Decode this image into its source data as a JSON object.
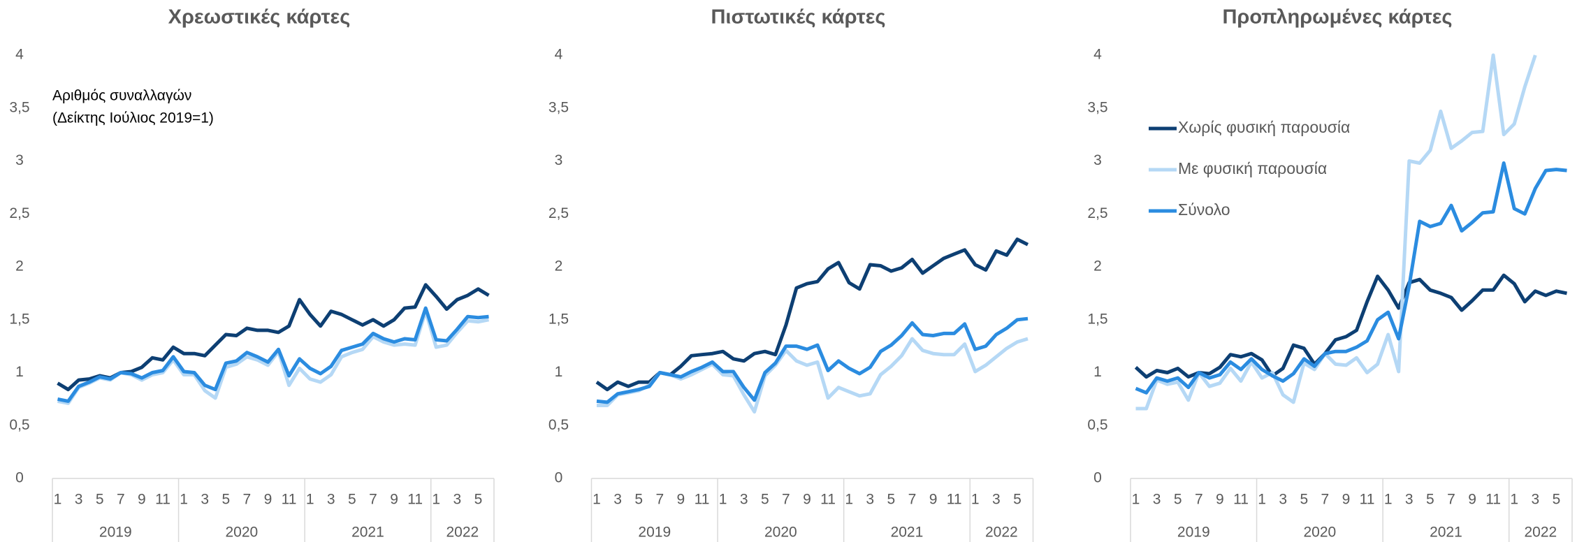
{
  "chart_data": [
    {
      "type": "line",
      "title": "Χρεωστικές κάρτες",
      "annotation": [
        "Αριθμός συναλλαγών",
        "(Δείκτης Ιούλιος 2019=1)"
      ],
      "categories": [
        "1",
        null,
        "3",
        null,
        "5",
        null,
        "7",
        null,
        "9",
        null,
        "11",
        null,
        "1",
        null,
        "3",
        null,
        "5",
        null,
        "7",
        null,
        "9",
        null,
        "11",
        null,
        "1",
        null,
        "3",
        null,
        "5",
        null,
        "7",
        null,
        "9",
        null,
        "11",
        null,
        "1",
        null,
        "3",
        null,
        "5",
        null
      ],
      "x_groups": [
        "2019",
        "2020",
        "2021",
        "2022"
      ],
      "ylim": [
        0,
        4
      ],
      "yticks": [
        0,
        {
          "value": 0.5,
          "label": "0,5"
        },
        1,
        {
          "value": 1.5,
          "label": "1,5"
        },
        2,
        {
          "value": 2.5,
          "label": "2,5"
        },
        3,
        {
          "value": 3.5,
          "label": "3,5"
        },
        4
      ],
      "series": [
        {
          "color": "#0d3f73",
          "values": [
            0.9,
            0.84,
            0.93,
            0.94,
            0.97,
            0.95,
            1.0,
            1.01,
            1.05,
            1.14,
            1.12,
            1.24,
            1.18,
            1.18,
            1.16,
            1.26,
            1.36,
            1.35,
            1.42,
            1.4,
            1.4,
            1.38,
            1.44,
            1.69,
            1.55,
            1.44,
            1.58,
            1.55,
            1.5,
            1.45,
            1.5,
            1.44,
            1.5,
            1.61,
            1.62,
            1.83,
            1.72,
            1.6,
            1.69,
            1.73,
            1.79,
            1.73
          ]
        },
        {
          "color": "#b5d8f5",
          "values": [
            0.73,
            0.71,
            0.86,
            0.9,
            0.95,
            0.93,
            1.0,
            0.98,
            0.93,
            0.98,
            1.0,
            1.12,
            0.98,
            0.98,
            0.83,
            0.76,
            1.05,
            1.08,
            1.15,
            1.12,
            1.07,
            1.2,
            0.88,
            1.04,
            0.94,
            0.91,
            0.98,
            1.15,
            1.19,
            1.22,
            1.34,
            1.29,
            1.26,
            1.27,
            1.26,
            1.58,
            1.24,
            1.26,
            1.38,
            1.49,
            1.48,
            1.5
          ]
        },
        {
          "color": "#2b8ce0",
          "values": [
            0.75,
            0.73,
            0.87,
            0.91,
            0.96,
            0.94,
            1.0,
            0.99,
            0.95,
            1.0,
            1.02,
            1.15,
            1.01,
            1.0,
            0.88,
            0.84,
            1.09,
            1.11,
            1.19,
            1.15,
            1.1,
            1.22,
            0.97,
            1.13,
            1.04,
            0.99,
            1.06,
            1.21,
            1.24,
            1.27,
            1.37,
            1.32,
            1.29,
            1.32,
            1.31,
            1.61,
            1.31,
            1.3,
            1.41,
            1.53,
            1.52,
            1.53
          ]
        }
      ]
    },
    {
      "type": "line",
      "title": "Πιστωτικές κάρτες",
      "categories": [
        "1",
        null,
        "3",
        null,
        "5",
        null,
        "7",
        null,
        "9",
        null,
        "11",
        null,
        "1",
        null,
        "3",
        null,
        "5",
        null,
        "7",
        null,
        "9",
        null,
        "11",
        null,
        "1",
        null,
        "3",
        null,
        "5",
        null,
        "7",
        null,
        "9",
        null,
        "11",
        null,
        "1",
        null,
        "3",
        null,
        "5",
        null
      ],
      "x_groups": [
        "2019",
        "2020",
        "2021",
        "2022"
      ],
      "ylim": [
        0,
        4
      ],
      "yticks": [
        0,
        {
          "value": 0.5,
          "label": "0,5"
        },
        1,
        {
          "value": 1.5,
          "label": "1,5"
        },
        2,
        {
          "value": 2.5,
          "label": "2,5"
        },
        3,
        {
          "value": 3.5,
          "label": "3,5"
        },
        4
      ],
      "series": [
        {
          "color": "#0d3f73",
          "values": [
            0.91,
            0.84,
            0.91,
            0.87,
            0.91,
            0.91,
            1.0,
            0.98,
            1.06,
            1.16,
            1.17,
            1.18,
            1.2,
            1.13,
            1.11,
            1.18,
            1.2,
            1.17,
            1.45,
            1.8,
            1.84,
            1.86,
            1.98,
            2.04,
            1.85,
            1.79,
            2.02,
            2.01,
            1.96,
            1.99,
            2.07,
            1.94,
            2.01,
            2.08,
            2.12,
            2.16,
            2.02,
            1.97,
            2.15,
            2.11,
            2.26,
            2.21
          ]
        },
        {
          "color": "#b5d8f5",
          "values": [
            0.69,
            0.69,
            0.79,
            0.81,
            0.83,
            0.88,
            1.0,
            0.98,
            0.94,
            0.98,
            1.03,
            1.08,
            0.98,
            0.97,
            0.79,
            0.63,
            0.97,
            1.07,
            1.21,
            1.11,
            1.07,
            1.1,
            0.76,
            0.86,
            0.82,
            0.78,
            0.8,
            0.98,
            1.06,
            1.16,
            1.32,
            1.21,
            1.18,
            1.17,
            1.17,
            1.27,
            1.01,
            1.07,
            1.15,
            1.23,
            1.29,
            1.32
          ]
        },
        {
          "color": "#2b8ce0",
          "values": [
            0.73,
            0.72,
            0.8,
            0.82,
            0.84,
            0.87,
            1.0,
            0.98,
            0.96,
            1.01,
            1.05,
            1.1,
            1.01,
            1.01,
            0.86,
            0.74,
            1.0,
            1.09,
            1.25,
            1.25,
            1.22,
            1.26,
            1.02,
            1.11,
            1.04,
            0.99,
            1.05,
            1.2,
            1.26,
            1.35,
            1.47,
            1.36,
            1.35,
            1.37,
            1.37,
            1.46,
            1.22,
            1.25,
            1.36,
            1.42,
            1.5,
            1.51
          ]
        }
      ]
    },
    {
      "type": "line",
      "title": "Προπληρωμένες κάρτες",
      "categories": [
        "1",
        null,
        "3",
        null,
        "5",
        null,
        "7",
        null,
        "9",
        null,
        "11",
        null,
        "1",
        null,
        "3",
        null,
        "5",
        null,
        "7",
        null,
        "9",
        null,
        "11",
        null,
        "1",
        null,
        "3",
        null,
        "5",
        null,
        "7",
        null,
        "9",
        null,
        "11",
        null,
        "1",
        null,
        "3",
        null,
        "5",
        null
      ],
      "x_groups": [
        "2019",
        "2020",
        "2021",
        "2022"
      ],
      "ylim": [
        0,
        4
      ],
      "yticks": [
        0,
        {
          "value": 0.5,
          "label": "0,5"
        },
        1,
        {
          "value": 1.5,
          "label": "1,5"
        },
        2,
        {
          "value": 2.5,
          "label": "2,5"
        },
        3,
        {
          "value": 3.5,
          "label": "3,5"
        },
        4
      ],
      "legend": "upper left",
      "series": [
        {
          "name": "Χωρίς φυσική παρουσία",
          "color": "#0d3f73",
          "values": [
            1.05,
            0.96,
            1.02,
            1.0,
            1.04,
            0.96,
            1.0,
            0.99,
            1.05,
            1.17,
            1.15,
            1.18,
            1.12,
            0.97,
            1.04,
            1.26,
            1.23,
            1.08,
            1.18,
            1.31,
            1.34,
            1.4,
            1.67,
            1.91,
            1.78,
            1.61,
            1.85,
            1.88,
            1.78,
            1.75,
            1.71,
            1.59,
            1.68,
            1.78,
            1.78,
            1.92,
            1.84,
            1.67,
            1.77,
            1.73,
            1.77,
            1.75
          ]
        },
        {
          "name": "Με φυσική παρουσία",
          "color": "#b5d8f5",
          "values": [
            0.66,
            0.66,
            0.93,
            0.89,
            0.91,
            0.74,
            1.0,
            0.87,
            0.9,
            1.04,
            0.92,
            1.1,
            0.95,
            1.0,
            0.79,
            0.72,
            1.09,
            1.03,
            1.18,
            1.08,
            1.07,
            1.14,
            1.0,
            1.08,
            1.36,
            1.01,
            3.0,
            2.98,
            3.1,
            3.47,
            3.12,
            3.19,
            3.27,
            3.28,
            4.0,
            3.25,
            3.35,
            3.7,
            4.0,
            null,
            null,
            null
          ]
        },
        {
          "name": "Σύνολο",
          "color": "#2b8ce0",
          "values": [
            0.85,
            0.81,
            0.95,
            0.92,
            0.95,
            0.86,
            1.0,
            0.95,
            0.98,
            1.1,
            1.03,
            1.13,
            1.03,
            0.97,
            0.92,
            0.99,
            1.13,
            1.06,
            1.18,
            1.2,
            1.2,
            1.24,
            1.3,
            1.5,
            1.57,
            1.32,
            1.82,
            2.43,
            2.38,
            2.41,
            2.58,
            2.34,
            2.42,
            2.51,
            2.52,
            2.98,
            2.55,
            2.5,
            2.74,
            2.91,
            2.92,
            2.91
          ]
        }
      ]
    }
  ]
}
